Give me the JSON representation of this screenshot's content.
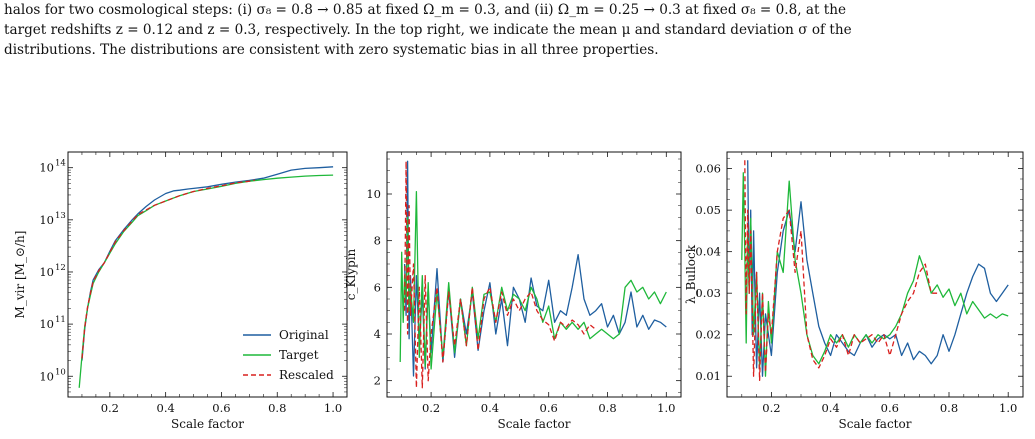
{
  "caption": {
    "lines": [
      "halos for two cosmological steps: (i) σ₈ = 0.8 → 0.85 at fixed Ω_m = 0.3, and (ii) Ω_m = 0.25 → 0.3 at fixed σ₈ = 0.8, at the",
      "target redshifts z = 0.12 and z = 0.3, respectively. In the top right, we indicate the mean μ and standard deviation σ of the",
      "distributions. The distributions are consistent with zero systematic bias in all three properties."
    ]
  },
  "colors": {
    "original": "#1f5fa0",
    "target": "#1fb83a",
    "rescaled": "#d9201e"
  },
  "chart_data": [
    {
      "type": "line",
      "xlabel": "Scale factor",
      "ylabel": "M_vir [M_⊙/h]",
      "yscale": "log",
      "xlim": [
        0.05,
        1.05
      ],
      "ylim": [
        4000000000,
        200000000000000
      ],
      "xticks": [
        0.2,
        0.4,
        0.6,
        0.8,
        1.0
      ],
      "xtick_labels": [
        "0.2",
        "0.4",
        "0.6",
        "0.8",
        "1.0"
      ],
      "yticks": [
        10000000000,
        100000000000,
        1000000000000,
        10000000000000,
        100000000000000
      ],
      "ytick_labels": [
        "10",
        "10",
        "10",
        "10",
        "10"
      ],
      "ytick_exponents": [
        "10",
        "11",
        "12",
        "13",
        "14"
      ],
      "legend": {
        "placement": "bottom-right",
        "entries": [
          "Original",
          "Target",
          "Rescaled"
        ]
      },
      "series": [
        {
          "name": "Original",
          "x": [
            0.1,
            0.11,
            0.12,
            0.13,
            0.14,
            0.16,
            0.18,
            0.2,
            0.22,
            0.25,
            0.28,
            0.3,
            0.33,
            0.36,
            0.4,
            0.43,
            0.45,
            0.48,
            0.5,
            0.55,
            0.6,
            0.65,
            0.7,
            0.75,
            0.8,
            0.85,
            0.9,
            0.95,
            1.0
          ],
          "y": [
            20000000000,
            80000000000,
            200000000000,
            400000000000,
            700000000000,
            1100000000000,
            1500000000000,
            2500000000000,
            4000000000000,
            6500000000000,
            10000000000000,
            13000000000000,
            18000000000000,
            24000000000000,
            32000000000000,
            36000000000000,
            37000000000000,
            39000000000000,
            40000000000000,
            43000000000000,
            48000000000000,
            53000000000000,
            57000000000000,
            63000000000000,
            75000000000000,
            90000000000000,
            97000000000000,
            100000000000000,
            104000000000000
          ]
        },
        {
          "name": "Target",
          "x": [
            0.09,
            0.1,
            0.11,
            0.12,
            0.13,
            0.14,
            0.16,
            0.18,
            0.2,
            0.22,
            0.25,
            0.28,
            0.3,
            0.33,
            0.36,
            0.4,
            0.45,
            0.5,
            0.55,
            0.6,
            0.65,
            0.7,
            0.75,
            0.8,
            0.85,
            0.9,
            0.95,
            1.0
          ],
          "y": [
            6000000000,
            25000000000,
            90000000000,
            200000000000,
            350000000000,
            600000000000,
            1000000000000,
            1500000000000,
            2300000000000,
            3500000000000,
            6000000000000,
            9000000000000,
            12000000000000,
            15000000000000,
            19000000000000,
            23000000000000,
            29000000000000,
            35000000000000,
            39000000000000,
            44000000000000,
            50000000000000,
            55000000000000,
            59000000000000,
            63000000000000,
            66000000000000,
            69000000000000,
            71000000000000,
            72000000000000
          ]
        },
        {
          "name": "Rescaled",
          "x": [
            0.1,
            0.11,
            0.12,
            0.13,
            0.14,
            0.16,
            0.18,
            0.2,
            0.22,
            0.25,
            0.28,
            0.3,
            0.33,
            0.36,
            0.4,
            0.45,
            0.5,
            0.55,
            0.6,
            0.65,
            0.7,
            0.72
          ],
          "y": [
            22000000000,
            85000000000,
            210000000000,
            380000000000,
            650000000000,
            1050000000000,
            1500000000000,
            2400000000000,
            3800000000000,
            6200000000000,
            9500000000000,
            12500000000000,
            15500000000000,
            19000000000000,
            23000000000000,
            29000000000000,
            35000000000000,
            40000000000000,
            45000000000000,
            51000000000000,
            55000000000000,
            58000000000000
          ]
        }
      ]
    },
    {
      "type": "line",
      "xlabel": "Scale factor",
      "ylabel": "c_Klypin",
      "xlim": [
        0.05,
        1.05
      ],
      "ylim": [
        1.3,
        11.8
      ],
      "xticks": [
        0.2,
        0.4,
        0.6,
        0.8,
        1.0
      ],
      "xtick_labels": [
        "0.2",
        "0.4",
        "0.6",
        "0.8",
        "1.0"
      ],
      "yticks": [
        2,
        4,
        6,
        8,
        10
      ],
      "ytick_labels": [
        "2",
        "4",
        "6",
        "8",
        "10"
      ],
      "series": [
        {
          "name": "Original",
          "x": [
            0.11,
            0.115,
            0.12,
            0.125,
            0.13,
            0.14,
            0.15,
            0.16,
            0.17,
            0.18,
            0.19,
            0.2,
            0.22,
            0.24,
            0.26,
            0.28,
            0.3,
            0.32,
            0.34,
            0.36,
            0.38,
            0.4,
            0.42,
            0.44,
            0.46,
            0.48,
            0.5,
            0.52,
            0.54,
            0.56,
            0.58,
            0.6,
            0.62,
            0.64,
            0.66,
            0.68,
            0.7,
            0.72,
            0.74,
            0.76,
            0.78,
            0.8,
            0.82,
            0.84,
            0.86,
            0.88,
            0.9,
            0.92,
            0.94,
            0.96,
            0.98,
            1.0
          ],
          "y": [
            7.0,
            4.8,
            11.4,
            3.8,
            6.5,
            2.2,
            6.5,
            3.5,
            5.8,
            2.5,
            6.0,
            3.2,
            6.8,
            2.8,
            5.9,
            3.0,
            5.5,
            4.0,
            5.8,
            3.3,
            5.0,
            6.2,
            4.0,
            5.5,
            3.5,
            6.0,
            5.5,
            4.5,
            6.4,
            5.2,
            5.0,
            6.3,
            4.5,
            5.0,
            4.8,
            6.0,
            7.4,
            5.5,
            4.8,
            5.0,
            5.3,
            4.3,
            4.8,
            4.0,
            4.5,
            5.8,
            4.3,
            4.8,
            4.2,
            4.6,
            4.5,
            4.3
          ]
        },
        {
          "name": "Target",
          "x": [
            0.095,
            0.1,
            0.105,
            0.11,
            0.115,
            0.12,
            0.125,
            0.13,
            0.14,
            0.15,
            0.16,
            0.17,
            0.18,
            0.19,
            0.2,
            0.22,
            0.24,
            0.26,
            0.28,
            0.3,
            0.32,
            0.34,
            0.36,
            0.38,
            0.4,
            0.42,
            0.44,
            0.46,
            0.48,
            0.5,
            0.52,
            0.54,
            0.56,
            0.58,
            0.6,
            0.62,
            0.64,
            0.66,
            0.68,
            0.7,
            0.72,
            0.74,
            0.76,
            0.78,
            0.8,
            0.82,
            0.84,
            0.86,
            0.88,
            0.9,
            0.92,
            0.94,
            0.96,
            0.98,
            1.0
          ],
          "y": [
            2.8,
            7.5,
            4.5,
            6.5,
            5.5,
            9.0,
            5.0,
            6.0,
            4.5,
            10.1,
            3.0,
            6.5,
            2.6,
            6.2,
            2.5,
            5.8,
            3.0,
            6.2,
            3.2,
            5.5,
            3.5,
            6.0,
            3.8,
            5.7,
            5.8,
            4.5,
            6.0,
            5.0,
            5.7,
            5.5,
            5.0,
            6.0,
            5.5,
            4.5,
            5.2,
            3.8,
            4.5,
            4.2,
            4.5,
            4.2,
            4.5,
            3.8,
            4.0,
            4.2,
            4.0,
            3.8,
            4.0,
            6.0,
            6.3,
            5.8,
            6.0,
            5.5,
            5.8,
            5.3,
            5.8
          ]
        },
        {
          "name": "Rescaled",
          "x": [
            0.11,
            0.115,
            0.12,
            0.125,
            0.13,
            0.14,
            0.15,
            0.16,
            0.17,
            0.18,
            0.19,
            0.2,
            0.22,
            0.24,
            0.26,
            0.28,
            0.3,
            0.32,
            0.34,
            0.36,
            0.38,
            0.4,
            0.42,
            0.44,
            0.46,
            0.48,
            0.5,
            0.52,
            0.54,
            0.56,
            0.58,
            0.6,
            0.62,
            0.64,
            0.66,
            0.68,
            0.7,
            0.72,
            0.74,
            0.76
          ],
          "y": [
            5.0,
            11.4,
            4.0,
            9.5,
            4.8,
            7.0,
            1.7,
            6.0,
            1.7,
            6.5,
            2.0,
            4.0,
            6.0,
            2.8,
            5.8,
            3.5,
            5.5,
            3.5,
            6.0,
            3.3,
            5.5,
            6.0,
            4.5,
            5.8,
            4.8,
            5.5,
            5.0,
            5.5,
            5.8,
            5.0,
            4.6,
            4.4,
            3.7,
            4.5,
            4.3,
            4.6,
            4.4,
            4.0,
            4.4,
            4.2
          ]
        }
      ]
    },
    {
      "type": "line",
      "xlabel": "Scale factor",
      "ylabel": "λ_Bullock",
      "xlim": [
        0.05,
        1.05
      ],
      "ylim": [
        0.005,
        0.064
      ],
      "xticks": [
        0.2,
        0.4,
        0.6,
        0.8,
        1.0
      ],
      "xtick_labels": [
        "0.2",
        "0.4",
        "0.6",
        "0.8",
        "1.0"
      ],
      "yticks": [
        0.01,
        0.02,
        0.03,
        0.04,
        0.05,
        0.06
      ],
      "ytick_labels": [
        "0.01",
        "0.02",
        "0.03",
        "0.04",
        "0.05",
        "0.06"
      ],
      "series": [
        {
          "name": "Original",
          "x": [
            0.12,
            0.125,
            0.13,
            0.135,
            0.14,
            0.15,
            0.16,
            0.17,
            0.18,
            0.2,
            0.22,
            0.24,
            0.26,
            0.28,
            0.3,
            0.32,
            0.34,
            0.36,
            0.38,
            0.4,
            0.42,
            0.44,
            0.46,
            0.48,
            0.5,
            0.52,
            0.54,
            0.56,
            0.58,
            0.6,
            0.62,
            0.64,
            0.66,
            0.68,
            0.7,
            0.72,
            0.74,
            0.76,
            0.78,
            0.8,
            0.82,
            0.84,
            0.86,
            0.88,
            0.9,
            0.92,
            0.94,
            0.96,
            0.98,
            1.0
          ],
          "y": [
            0.062,
            0.03,
            0.05,
            0.02,
            0.045,
            0.012,
            0.03,
            0.01,
            0.025,
            0.015,
            0.035,
            0.045,
            0.05,
            0.04,
            0.052,
            0.038,
            0.03,
            0.022,
            0.018,
            0.015,
            0.02,
            0.018,
            0.016,
            0.015,
            0.018,
            0.02,
            0.017,
            0.019,
            0.02,
            0.019,
            0.02,
            0.015,
            0.018,
            0.014,
            0.016,
            0.015,
            0.013,
            0.015,
            0.02,
            0.016,
            0.02,
            0.025,
            0.03,
            0.034,
            0.037,
            0.036,
            0.03,
            0.028,
            0.03,
            0.032
          ]
        },
        {
          "name": "Target",
          "x": [
            0.1,
            0.105,
            0.11,
            0.115,
            0.12,
            0.125,
            0.13,
            0.14,
            0.15,
            0.16,
            0.17,
            0.18,
            0.19,
            0.2,
            0.22,
            0.24,
            0.26,
            0.28,
            0.3,
            0.32,
            0.34,
            0.36,
            0.38,
            0.4,
            0.42,
            0.44,
            0.46,
            0.48,
            0.5,
            0.52,
            0.54,
            0.56,
            0.58,
            0.6,
            0.62,
            0.64,
            0.66,
            0.68,
            0.7,
            0.72,
            0.74,
            0.76,
            0.78,
            0.8,
            0.82,
            0.84,
            0.86,
            0.88,
            0.9,
            0.92,
            0.94,
            0.96,
            0.98,
            1.0
          ],
          "y": [
            0.038,
            0.059,
            0.04,
            0.018,
            0.045,
            0.03,
            0.048,
            0.02,
            0.035,
            0.012,
            0.03,
            0.01,
            0.028,
            0.018,
            0.04,
            0.035,
            0.057,
            0.038,
            0.03,
            0.02,
            0.015,
            0.013,
            0.016,
            0.02,
            0.018,
            0.02,
            0.017,
            0.02,
            0.018,
            0.02,
            0.018,
            0.02,
            0.019,
            0.02,
            0.022,
            0.025,
            0.03,
            0.033,
            0.039,
            0.035,
            0.03,
            0.032,
            0.029,
            0.031,
            0.027,
            0.03,
            0.025,
            0.028,
            0.026,
            0.024,
            0.025,
            0.024,
            0.025,
            0.0245
          ]
        },
        {
          "name": "Rescaled",
          "x": [
            0.11,
            0.115,
            0.12,
            0.125,
            0.13,
            0.14,
            0.15,
            0.16,
            0.17,
            0.18,
            0.19,
            0.2,
            0.22,
            0.24,
            0.26,
            0.28,
            0.3,
            0.32,
            0.34,
            0.36,
            0.38,
            0.4,
            0.42,
            0.44,
            0.46,
            0.48,
            0.5,
            0.52,
            0.54,
            0.56,
            0.58,
            0.6,
            0.62,
            0.64,
            0.66,
            0.68,
            0.7,
            0.72,
            0.74,
            0.76
          ],
          "y": [
            0.062,
            0.025,
            0.05,
            0.03,
            0.045,
            0.01,
            0.035,
            0.009,
            0.03,
            0.011,
            0.025,
            0.02,
            0.04,
            0.048,
            0.05,
            0.035,
            0.045,
            0.02,
            0.014,
            0.012,
            0.015,
            0.019,
            0.017,
            0.02,
            0.015,
            0.02,
            0.018,
            0.019,
            0.02,
            0.018,
            0.02,
            0.015,
            0.02,
            0.025,
            0.028,
            0.03,
            0.035,
            0.037,
            0.03,
            0.03
          ]
        }
      ]
    }
  ]
}
